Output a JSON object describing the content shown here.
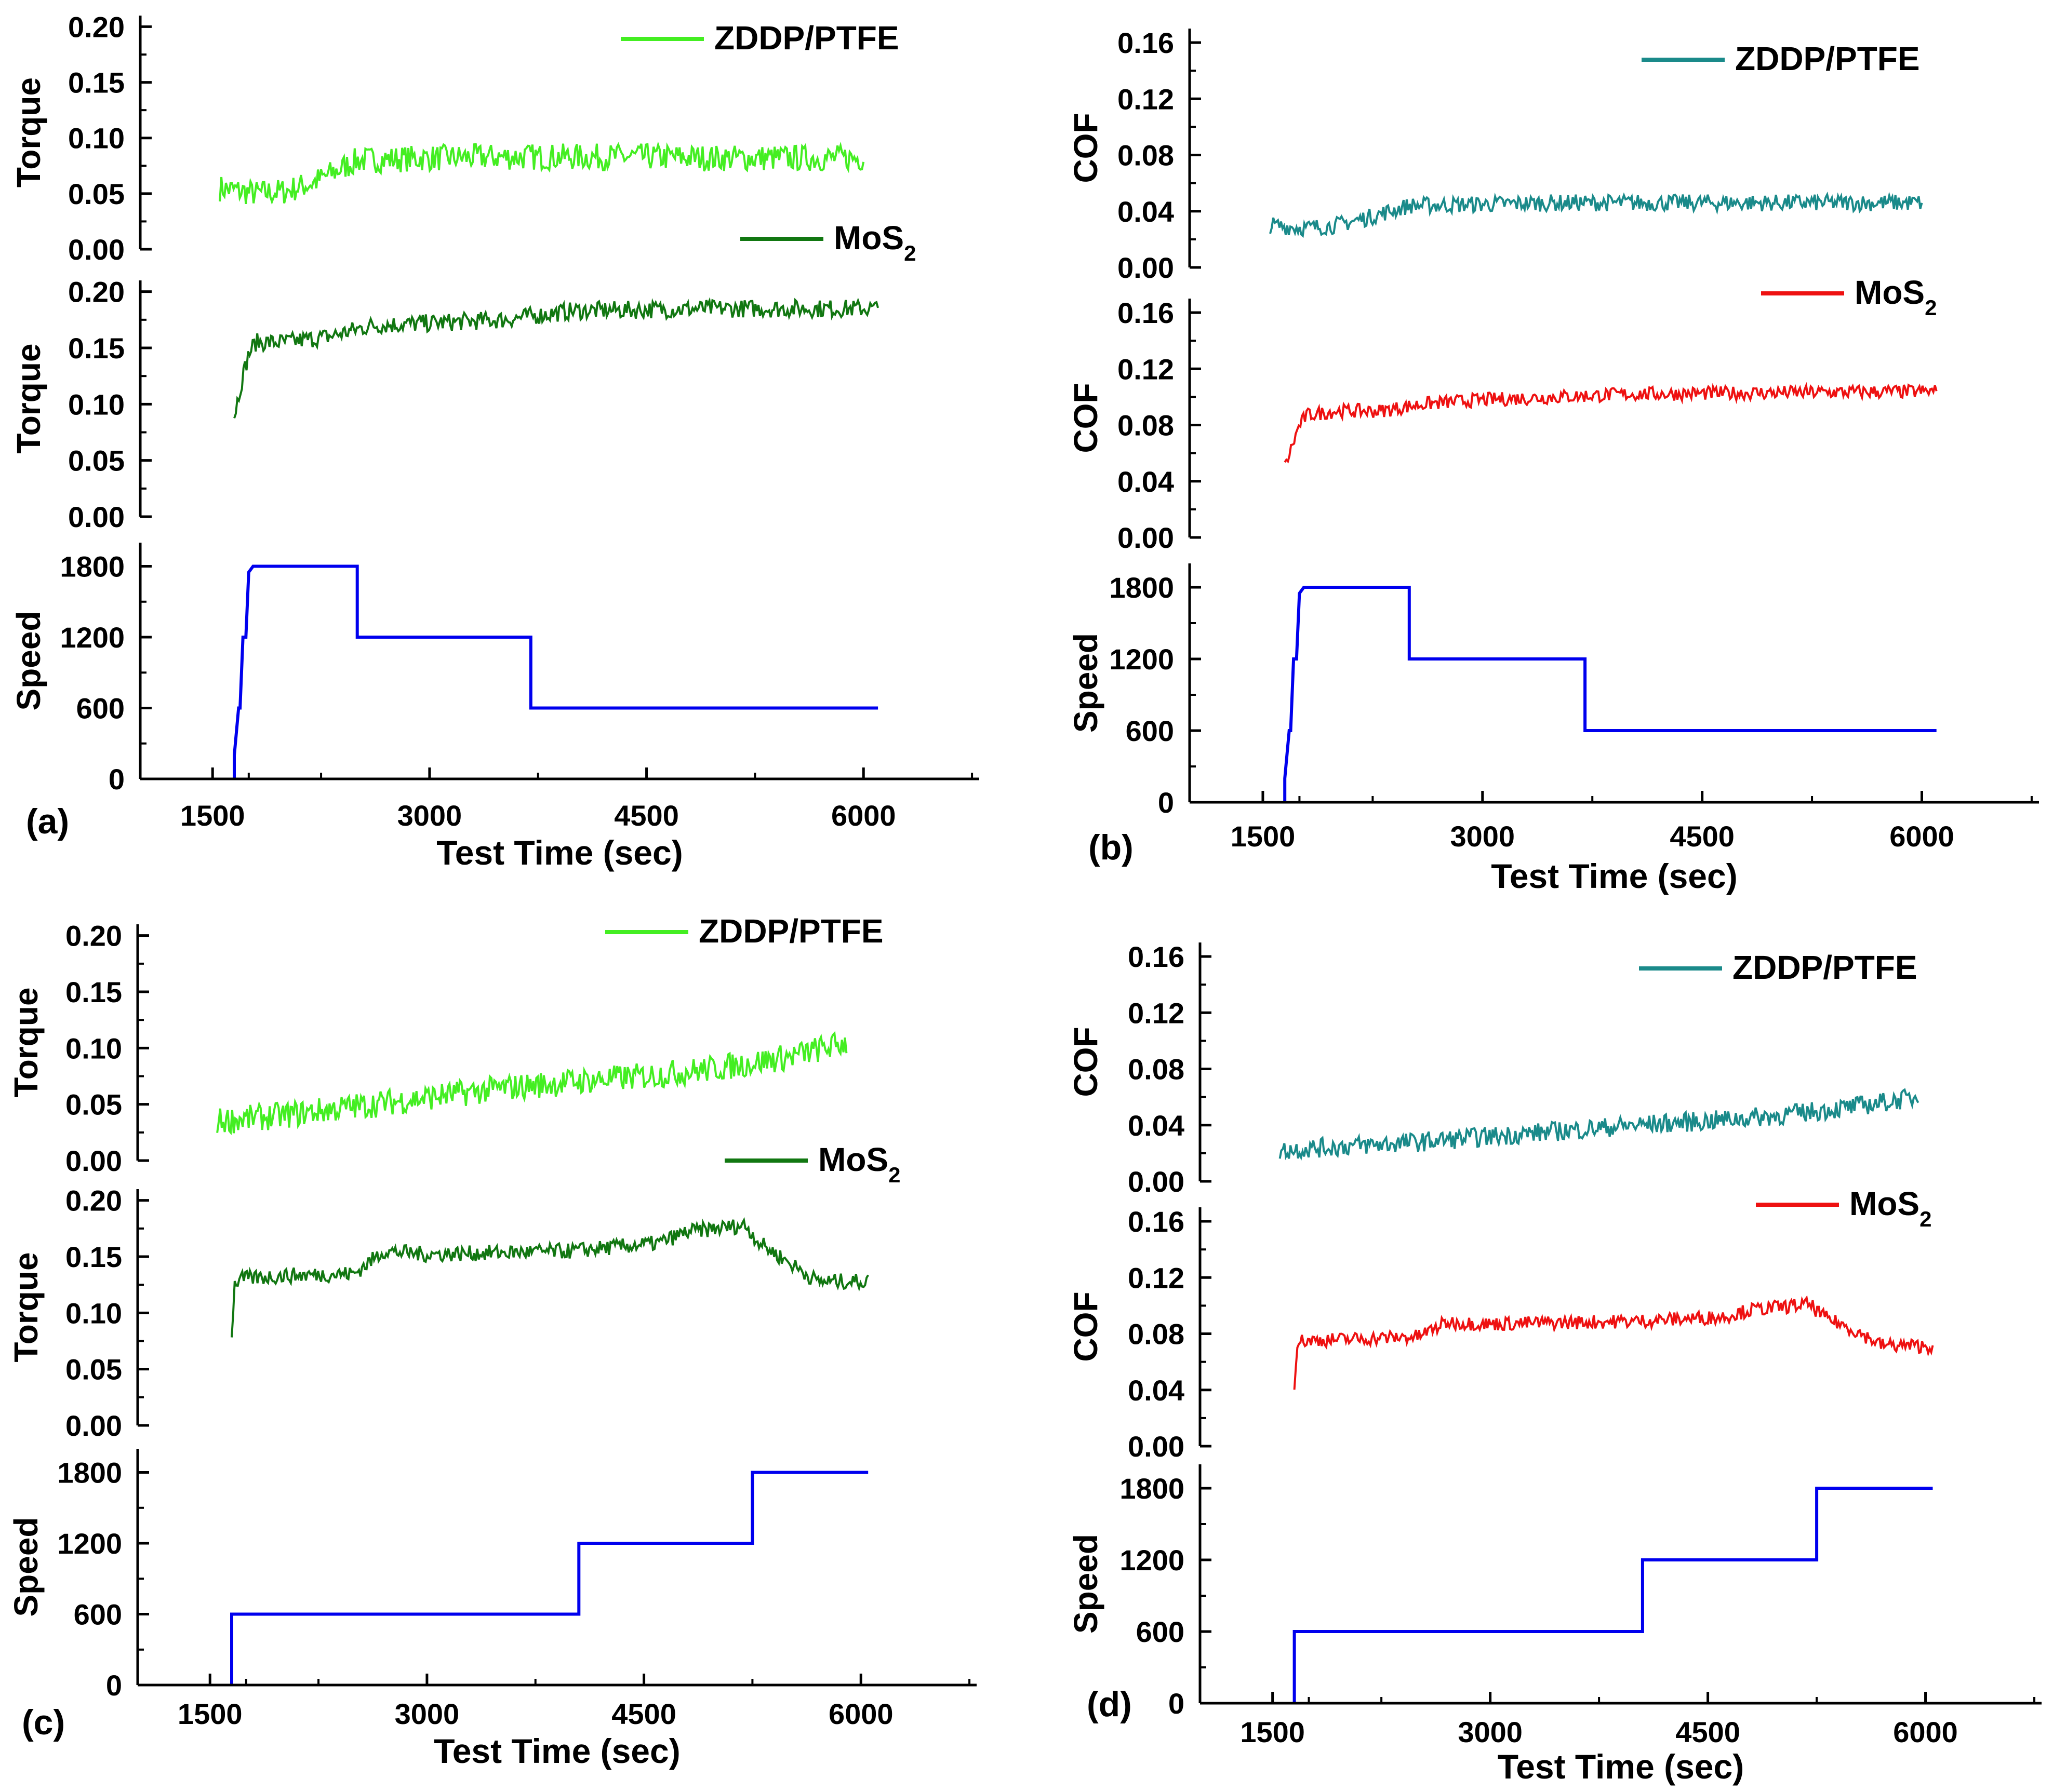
{
  "figure": {
    "panels": [
      {
        "letter": "(a)",
        "ylabel": "Torque",
        "xlabel": "Test Time (sec)",
        "xticks": [
          "1500",
          "3000",
          "4500",
          "6000"
        ],
        "legend_top": "ZDDP/PTFE",
        "legend_mid": "MoS",
        "legend_mid_sub": "2",
        "speed_label": "Speed"
      },
      {
        "letter": "(b)",
        "ylabel": "COF",
        "xlabel": "Test Time (sec)",
        "xticks": [
          "1500",
          "3000",
          "4500",
          "6000"
        ],
        "legend_top": "ZDDP/PTFE",
        "legend_mid": "MoS",
        "legend_mid_sub": "2",
        "speed_label": "Speed"
      },
      {
        "letter": "(c)",
        "ylabel": "Torque",
        "xlabel": "Test Time (sec)",
        "xticks": [
          "1500",
          "3000",
          "4500",
          "6000"
        ],
        "legend_top": "ZDDP/PTFE",
        "legend_mid": "MoS",
        "legend_mid_sub": "2",
        "speed_label": "Speed"
      },
      {
        "letter": "(d)",
        "ylabel": "COF",
        "xlabel": "Test Time (sec)",
        "xticks": [
          "1500",
          "3000",
          "4500",
          "6000"
        ],
        "legend_top": "ZDDP/PTFE",
        "legend_mid": "MoS",
        "legend_mid_sub": "2",
        "speed_label": "Speed"
      }
    ]
  },
  "colors": {
    "zddp_torque": "#44ee22",
    "mos2_torque": "#117711",
    "zddp_cof": "#1a8a8a",
    "mos2_cof": "#ee1111",
    "speed": "#0000ee",
    "axis": "#000000"
  },
  "chart_data": [
    {
      "panel": "(a)",
      "type": "line",
      "xlim": [
        1000,
        6800
      ],
      "subplots": [
        {
          "ylabel": "Torque",
          "ylim": [
            0,
            0.21
          ],
          "yticks": [
            "0.00",
            "0.05",
            "0.10",
            "0.15",
            "0.20"
          ],
          "series": [
            {
              "name": "ZDDP/PTFE",
              "color": "#44ee22",
              "x": [
                1550,
                1800,
                2000,
                2200,
                2500,
                3000,
                3500,
                4000,
                4500,
                5000,
                5500,
                6000
              ],
              "y": [
                0.055,
                0.05,
                0.052,
                0.06,
                0.08,
                0.082,
                0.083,
                0.083,
                0.083,
                0.082,
                0.082,
                0.082
              ],
              "noise": 0.012,
              "ymin": 0.02,
              "ymax": 0.1
            }
          ]
        },
        {
          "ylabel": "Torque",
          "ylim": [
            0,
            0.21
          ],
          "yticks": [
            "0.00",
            "0.05",
            "0.10",
            "0.15",
            "0.20"
          ],
          "series": [
            {
              "name": "MoS2",
              "color": "#117711",
              "x": [
                1650,
                1700,
                1750,
                1800,
                2000,
                2300,
                2600,
                3000,
                3500,
                4000,
                5000,
                6100
              ],
              "y": [
                0.09,
                0.12,
                0.145,
                0.155,
                0.155,
                0.16,
                0.17,
                0.172,
                0.175,
                0.183,
                0.185,
                0.185
              ],
              "noise": 0.008,
              "ymin": 0.078,
              "ymax": 0.2
            }
          ]
        },
        {
          "ylabel": "Speed",
          "ylim": [
            0,
            2000
          ],
          "yticks": [
            "0",
            "600",
            "1200",
            "1800"
          ],
          "series": [
            {
              "name": "Speed",
              "color": "#0000ee",
              "x": [
                1650,
                1650,
                1680,
                1690,
                1710,
                1730,
                1750,
                1780,
                2500,
                2500,
                3700,
                3700,
                6100
              ],
              "y": [
                0,
                200,
                600,
                600,
                1200,
                1200,
                1750,
                1800,
                1800,
                1200,
                1200,
                600,
                600
              ]
            }
          ]
        }
      ]
    },
    {
      "panel": "(b)",
      "type": "line",
      "xlim": [
        1000,
        6800
      ],
      "subplots": [
        {
          "ylabel": "COF",
          "ylim": [
            0,
            0.17
          ],
          "yticks": [
            "0.00",
            "0.04",
            "0.08",
            "0.12",
            "0.16"
          ],
          "series": [
            {
              "name": "ZDDP/PTFE",
              "color": "#1a8a8a",
              "x": [
                1550,
                1800,
                2000,
                2200,
                2500,
                3000,
                3500,
                4000,
                4500,
                5000,
                5500,
                6000
              ],
              "y": [
                0.03,
                0.028,
                0.03,
                0.035,
                0.044,
                0.045,
                0.046,
                0.046,
                0.046,
                0.046,
                0.046,
                0.046
              ],
              "noise": 0.006,
              "ymin": 0.012,
              "ymax": 0.056
            }
          ]
        },
        {
          "ylabel": "COF",
          "ylim": [
            0,
            0.17
          ],
          "yticks": [
            "0.00",
            "0.04",
            "0.08",
            "0.12",
            "0.16"
          ],
          "series": [
            {
              "name": "MoS2",
              "color": "#ee1111",
              "x": [
                1650,
                1700,
                1750,
                1800,
                2000,
                2300,
                2600,
                3000,
                3500,
                4000,
                5000,
                6100
              ],
              "y": [
                0.05,
                0.065,
                0.08,
                0.087,
                0.09,
                0.09,
                0.095,
                0.098,
                0.1,
                0.102,
                0.103,
                0.104
              ],
              "noise": 0.005,
              "ymin": 0.045,
              "ymax": 0.115
            }
          ]
        },
        {
          "ylabel": "Speed",
          "ylim": [
            0,
            2000
          ],
          "yticks": [
            "0",
            "600",
            "1200",
            "1800"
          ],
          "series": [
            {
              "name": "Speed",
              "color": "#0000ee",
              "x": [
                1650,
                1650,
                1680,
                1690,
                1710,
                1730,
                1750,
                1780,
                2500,
                2500,
                3700,
                3700,
                6100
              ],
              "y": [
                0,
                200,
                600,
                600,
                1200,
                1200,
                1750,
                1800,
                1800,
                1200,
                1200,
                600,
                600
              ]
            }
          ]
        }
      ]
    },
    {
      "panel": "(c)",
      "type": "line",
      "xlim": [
        1000,
        6800
      ],
      "subplots": [
        {
          "ylabel": "Torque",
          "ylim": [
            0,
            0.21
          ],
          "yticks": [
            "0.00",
            "0.05",
            "0.10",
            "0.15",
            "0.20"
          ],
          "series": [
            {
              "name": "ZDDP/PTFE",
              "color": "#44ee22",
              "x": [
                1550,
                2000,
                2500,
                3000,
                3500,
                4000,
                4500,
                5000,
                5500,
                5900
              ],
              "y": [
                0.035,
                0.04,
                0.048,
                0.056,
                0.064,
                0.07,
                0.075,
                0.082,
                0.092,
                0.105
              ],
              "noise": 0.012,
              "ymin": 0.01,
              "ymax": 0.13
            }
          ]
        },
        {
          "ylabel": "Torque",
          "ylim": [
            0,
            0.21
          ],
          "yticks": [
            "0.00",
            "0.05",
            "0.10",
            "0.15",
            "0.20"
          ],
          "series": [
            {
              "name": "MoS2",
              "color": "#117711",
              "x": [
                1650,
                1670,
                1700,
                2000,
                2500,
                2700,
                3000,
                4000,
                4600,
                4800,
                5200,
                5300,
                5500,
                5700,
                6050
              ],
              "y": [
                0.08,
                0.125,
                0.13,
                0.133,
                0.135,
                0.155,
                0.152,
                0.155,
                0.162,
                0.172,
                0.178,
                0.162,
                0.145,
                0.128,
                0.128
              ],
              "noise": 0.007,
              "ymin": 0.068,
              "ymax": 0.2
            }
          ]
        },
        {
          "ylabel": "Speed",
          "ylim": [
            0,
            2000
          ],
          "yticks": [
            "0",
            "600",
            "1200",
            "1800"
          ],
          "series": [
            {
              "name": "Speed",
              "color": "#0000ee",
              "x": [
                1650,
                1650,
                4050,
                4050,
                5250,
                5250,
                6050
              ],
              "y": [
                0,
                600,
                600,
                1200,
                1200,
                1800,
                1800
              ]
            }
          ]
        }
      ]
    },
    {
      "panel": "(d)",
      "type": "line",
      "xlim": [
        1000,
        6800
      ],
      "subplots": [
        {
          "ylabel": "COF",
          "ylim": [
            0,
            0.17
          ],
          "yticks": [
            "0.00",
            "0.04",
            "0.08",
            "0.12",
            "0.16"
          ],
          "series": [
            {
              "name": "ZDDP/PTFE",
              "color": "#1a8a8a",
              "x": [
                1550,
                2000,
                2500,
                3000,
                3500,
                4000,
                4500,
                5000,
                5500,
                5950
              ],
              "y": [
                0.022,
                0.025,
                0.028,
                0.032,
                0.036,
                0.04,
                0.043,
                0.047,
                0.053,
                0.06
              ],
              "noise": 0.007,
              "ymin": 0.005,
              "ymax": 0.075
            }
          ]
        },
        {
          "ylabel": "COF",
          "ylim": [
            0,
            0.17
          ],
          "yticks": [
            "0.00",
            "0.04",
            "0.08",
            "0.12",
            "0.16"
          ],
          "series": [
            {
              "name": "MoS2",
              "color": "#ee1111",
              "x": [
                1650,
                1670,
                1700,
                2000,
                2500,
                2700,
                3000,
                4000,
                4600,
                4800,
                5200,
                5300,
                5500,
                5700,
                6050
              ],
              "y": [
                0.045,
                0.074,
                0.075,
                0.076,
                0.078,
                0.088,
                0.087,
                0.089,
                0.092,
                0.097,
                0.101,
                0.092,
                0.083,
                0.072,
                0.071
              ],
              "noise": 0.005,
              "ymin": 0.04,
              "ymax": 0.115
            }
          ]
        },
        {
          "ylabel": "Speed",
          "ylim": [
            0,
            2000
          ],
          "yticks": [
            "0",
            "600",
            "1200",
            "1800"
          ],
          "series": [
            {
              "name": "Speed",
              "color": "#0000ee",
              "x": [
                1650,
                1650,
                4050,
                4050,
                5250,
                5250,
                6050
              ],
              "y": [
                0,
                600,
                600,
                1200,
                1200,
                1800,
                1800
              ]
            }
          ]
        }
      ]
    }
  ]
}
